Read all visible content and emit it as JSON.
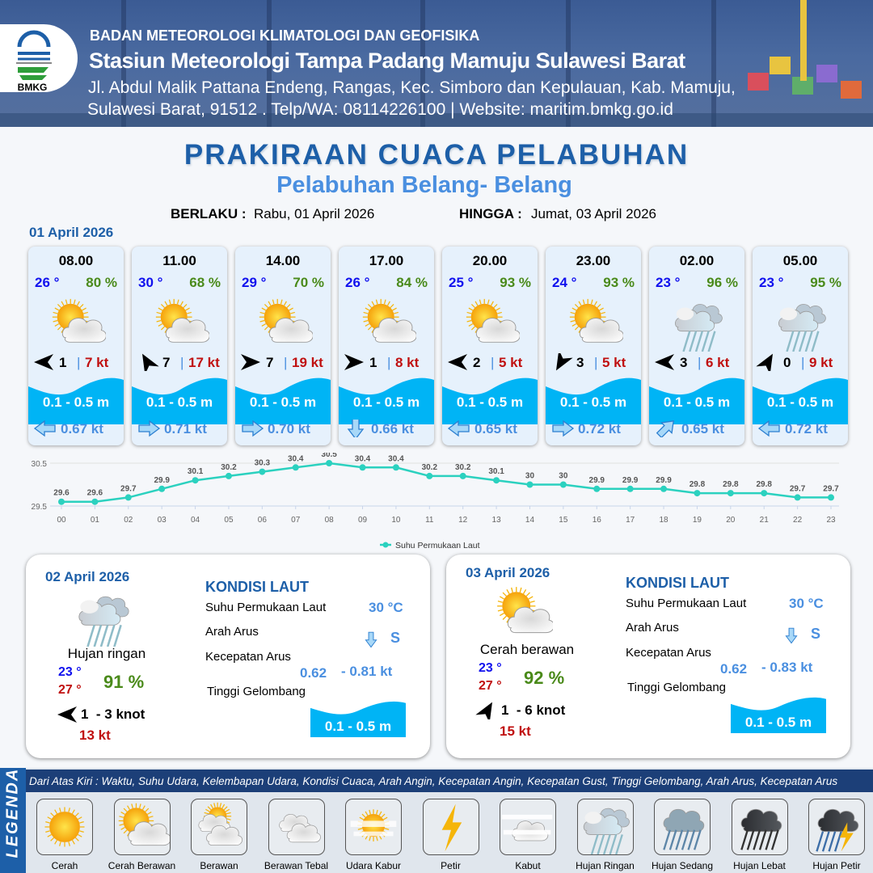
{
  "header": {
    "agency": "BADAN METEOROLOGI KLIMATOLOGI DAN GEOFISIKA",
    "station": "Stasiun Meteorologi Tampa Padang Mamuju Sulawesi Barat",
    "address_line1": "Jl. Abdul Malik Pattana Endeng, Rangas, Kec. Simboro dan Kepulauan, Kab. Mamuju,",
    "address_line2": "Sulawesi Barat, 91512 . Telp/WA: 08114226100 | Website: maritim.bmkg.go.id",
    "logo_text": "BMKG"
  },
  "title": "PRAKIRAAN CUACA PELABUHAN",
  "subtitle": "Pelabuhan Belang- Belang",
  "validity": {
    "from_label": "BERLAKU :",
    "from_value": "Rabu, 01 April 2026",
    "to_label": "HINGGA :",
    "to_value": "Jumat, 03 April 2026"
  },
  "day1_label": "01 April 2026",
  "colors": {
    "primary": "#1d5fa8",
    "accent": "#4a8fe0",
    "wave": "#00b4f5",
    "temperature": "#1010ee",
    "humidity": "#4a8a1a",
    "gust": "#c01010",
    "chart_line": "#2bd1bf"
  },
  "cards": [
    {
      "time": "08.00",
      "temp": "26 °",
      "humidity": "80 %",
      "icon": "sun-cloud",
      "wind_dir_deg": 180,
      "wind_speed": "1",
      "gust": "7 kt",
      "wave": "0.1 - 0.5 m",
      "current_dir": "left",
      "current_speed": "0.67 kt"
    },
    {
      "time": "11.00",
      "temp": "30 °",
      "humidity": "68 %",
      "icon": "sun-cloud",
      "wind_dir_deg": 240,
      "wind_speed": "7",
      "gust": "17 kt",
      "wave": "0.1 - 0.5 m",
      "current_dir": "right",
      "current_speed": "0.71 kt"
    },
    {
      "time": "14.00",
      "temp": "29 °",
      "humidity": "70 %",
      "icon": "sun-cloud",
      "wind_dir_deg": 0,
      "wind_speed": "7",
      "gust": "19 kt",
      "wave": "0.1 - 0.5 m",
      "current_dir": "right",
      "current_speed": "0.70 kt"
    },
    {
      "time": "17.00",
      "temp": "26 °",
      "humidity": "84 %",
      "icon": "sun-cloud",
      "wind_dir_deg": 0,
      "wind_speed": "1",
      "gust": "8 kt",
      "wave": "0.1 - 0.5 m",
      "current_dir": "down",
      "current_speed": "0.66 kt"
    },
    {
      "time": "20.00",
      "temp": "25 °",
      "humidity": "93 %",
      "icon": "sun-cloud",
      "wind_dir_deg": 180,
      "wind_speed": "2",
      "gust": "5 kt",
      "wave": "0.1 - 0.5 m",
      "current_dir": "left",
      "current_speed": "0.65 kt"
    },
    {
      "time": "23.00",
      "temp": "24 °",
      "humidity": "93 %",
      "icon": "sun-cloud",
      "wind_dir_deg": 120,
      "wind_speed": "3",
      "gust": "5 kt",
      "wave": "0.1 - 0.5 m",
      "current_dir": "right",
      "current_speed": "0.72 kt"
    },
    {
      "time": "02.00",
      "temp": "23 °",
      "humidity": "96 %",
      "icon": "light-rain",
      "wind_dir_deg": 180,
      "wind_speed": "3",
      "gust": "6 kt",
      "wave": "0.1 - 0.5 m",
      "current_dir": "up-right",
      "current_speed": "0.65 kt"
    },
    {
      "time": "05.00",
      "temp": "23 °",
      "humidity": "95 %",
      "icon": "light-rain",
      "wind_dir_deg": 300,
      "wind_speed": "0",
      "gust": "9 kt",
      "wave": "0.1 - 0.5 m",
      "current_dir": "left",
      "current_speed": "0.72 kt"
    }
  ],
  "chart_data": {
    "type": "line",
    "categories": [
      "00",
      "01",
      "02",
      "03",
      "04",
      "05",
      "06",
      "07",
      "08",
      "09",
      "10",
      "11",
      "12",
      "13",
      "14",
      "15",
      "16",
      "17",
      "18",
      "19",
      "20",
      "21",
      "22",
      "23"
    ],
    "series": [
      {
        "name": "Suhu Permukaan Laut",
        "values": [
          29.6,
          29.6,
          29.7,
          29.9,
          30.1,
          30.2,
          30.3,
          30.4,
          30.5,
          30.4,
          30.4,
          30.2,
          30.2,
          30.1,
          30.0,
          30.0,
          29.9,
          29.9,
          29.9,
          29.8,
          29.8,
          29.8,
          29.7,
          29.7
        ]
      }
    ],
    "yticks": [
      "30.5",
      "29.5"
    ],
    "ylim": [
      29.5,
      30.5
    ],
    "legend": "bottom",
    "grid": true
  },
  "panels": [
    {
      "date": "02 April 2026",
      "icon": "light-rain",
      "condition": "Hujan ringan",
      "temp_min": "23 °",
      "temp_max": "27 °",
      "humidity": "91 %",
      "wind_dir_deg": 180,
      "wind": "1  - 3 knot",
      "gust": "13 kt",
      "sea_title": "KONDISI LAUT",
      "sst_label": "Suhu Permukaan Laut",
      "sst": "30 °C",
      "cur_dir_label": "Arah Arus",
      "cur_dir": "S",
      "cur_speed_label": "Kecepatan Arus",
      "cur_min": "0.62",
      "cur_max": "- 0.81 kt",
      "wave_label": "Tinggi Gelombang",
      "wave": "0.1 - 0.5 m"
    },
    {
      "date": "03 April 2026",
      "icon": "sun-cloud",
      "condition": "Cerah berawan",
      "temp_min": "23 °",
      "temp_max": "27 °",
      "humidity": "92 %",
      "wind_dir_deg": 300,
      "wind": "1  - 6 knot",
      "gust": "15 kt",
      "sea_title": "KONDISI LAUT",
      "sst_label": "Suhu Permukaan Laut",
      "sst": "30 °C",
      "cur_dir_label": "Arah Arus",
      "cur_dir": "S",
      "cur_speed_label": "Kecepatan Arus",
      "cur_min": "0.62",
      "cur_max": "- 0.83 kt",
      "wave_label": "Tinggi Gelombang",
      "wave": "0.1 - 0.5 m"
    }
  ],
  "legend": {
    "title": "LEGENDA",
    "description": "Dari Atas Kiri : Waktu, Suhu Udara, Kelembapan Udara, Kondisi Cuaca, Arah Angin, Kecepatan Angin, Kecepatan Gust, Tinggi Gelombang, Arah Arus, Kecepatan Arus",
    "items": [
      {
        "label": "Cerah",
        "icon": "sun"
      },
      {
        "label": "Cerah Berawan",
        "icon": "sun-cloud"
      },
      {
        "label": "Berawan",
        "icon": "cloudy"
      },
      {
        "label": "Berawan Tebal",
        "icon": "overcast"
      },
      {
        "label": "Udara Kabur",
        "icon": "haze"
      },
      {
        "label": "Petir",
        "icon": "lightning"
      },
      {
        "label": "Kabut",
        "icon": "fog"
      },
      {
        "label": "Hujan Ringan",
        "icon": "light-rain"
      },
      {
        "label": "Hujan Sedang",
        "icon": "moderate-rain"
      },
      {
        "label": "Hujan Lebat",
        "icon": "heavy-rain"
      },
      {
        "label": "Hujan Petir",
        "icon": "thunderstorm"
      }
    ]
  }
}
